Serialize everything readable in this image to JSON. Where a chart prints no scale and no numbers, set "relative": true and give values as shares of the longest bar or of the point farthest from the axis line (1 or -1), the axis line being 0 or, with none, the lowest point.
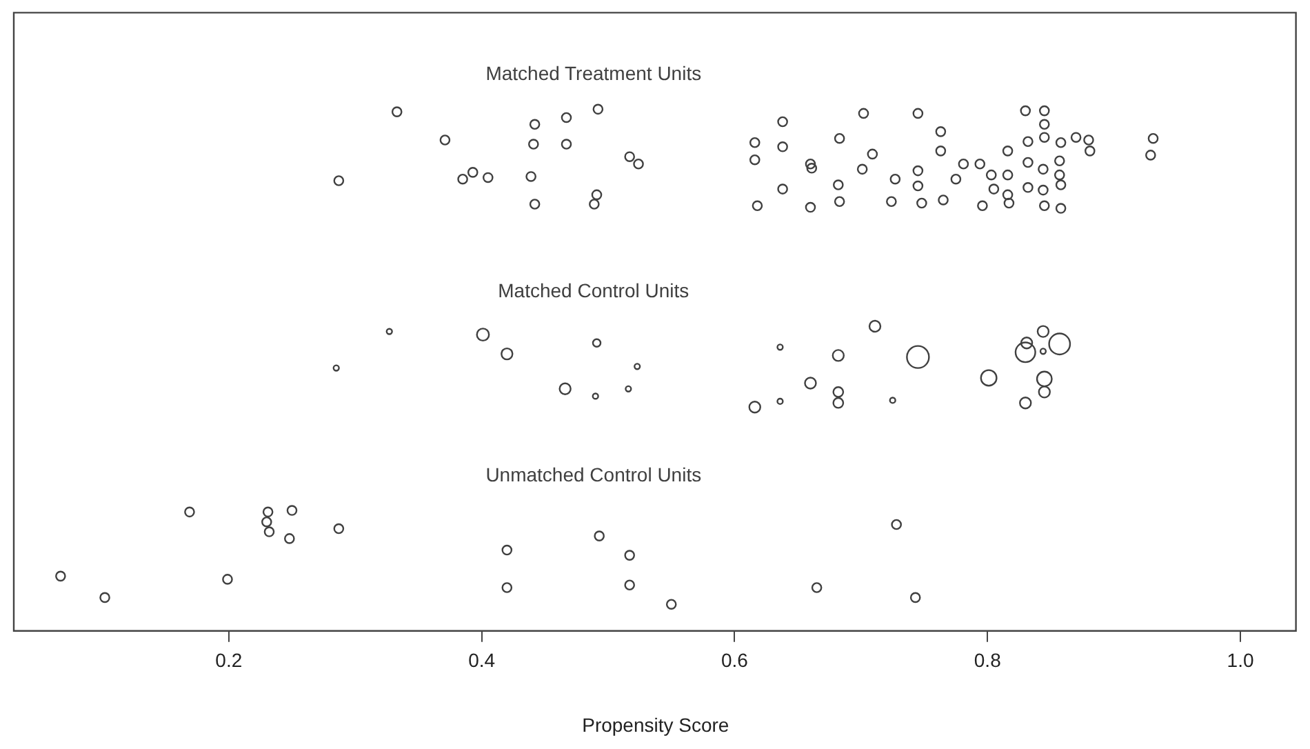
{
  "chart_data": {
    "type": "scatter",
    "xlabel": "Propensity Score",
    "relative": true,
    "grid": false,
    "legend": false,
    "marker": "circle",
    "tick_labels": "x",
    "xlim": [
      0.03,
      1.045
    ],
    "xticks": [
      0.2,
      0.4,
      0.6,
      {
        "value": 1,
        "label": "1.0"
      },
      0.8
    ],
    "series": [
      {
        "name": "Matched Treatment Units",
        "color": "#404040",
        "x": [
          0.333,
          0.371,
          0.287,
          0.385,
          0.393,
          0.405,
          0.442,
          0.441,
          0.439,
          0.442,
          0.467,
          0.467,
          0.492,
          0.491,
          0.489,
          0.517,
          0.524,
          0.616,
          0.616,
          0.638,
          0.638,
          0.638,
          0.618,
          0.66,
          0.66,
          0.661,
          0.682,
          0.683,
          0.683,
          0.702,
          0.701,
          0.709,
          0.724,
          0.727,
          0.745,
          0.745,
          0.745,
          0.748,
          0.763,
          0.763,
          0.765,
          0.775,
          0.781,
          0.794,
          0.796,
          0.803,
          0.805,
          0.816,
          0.816,
          0.816,
          0.817,
          0.83,
          0.832,
          0.832,
          0.832,
          0.845,
          0.845,
          0.845,
          0.844,
          0.844,
          0.845,
          0.858,
          0.857,
          0.857,
          0.858,
          0.858,
          0.87,
          0.88,
          0.881,
          0.931,
          0.929
        ],
        "values": [
          0.995,
          0.941,
          0.863,
          0.866,
          0.879,
          0.869,
          0.971,
          0.933,
          0.871,
          0.818,
          0.984,
          0.933,
          1.0,
          0.836,
          0.818,
          0.909,
          0.895,
          0.936,
          0.903,
          0.976,
          0.928,
          0.847,
          0.815,
          0.895,
          0.812,
          0.887,
          0.855,
          0.823,
          0.944,
          0.992,
          0.885,
          0.914,
          0.823,
          0.866,
          0.992,
          0.882,
          0.853,
          0.82,
          0.957,
          0.92,
          0.826,
          0.866,
          0.895,
          0.895,
          0.815,
          0.874,
          0.847,
          0.92,
          0.874,
          0.836,
          0.82,
          0.997,
          0.938,
          0.898,
          0.85,
          0.997,
          0.971,
          0.946,
          0.885,
          0.845,
          0.815,
          0.936,
          0.901,
          0.874,
          0.855,
          0.81,
          0.946,
          0.941,
          0.92,
          0.944,
          0.912
        ]
      },
      {
        "name": "Matched Control Units",
        "type": "bubble",
        "color": "#404040",
        "x": [
          0.327,
          0.401,
          0.42,
          0.491,
          0.523,
          0.285,
          0.466,
          0.49,
          0.516,
          0.616,
          0.636,
          0.636,
          0.66,
          0.682,
          0.682,
          0.711,
          0.682,
          0.725,
          0.745,
          0.801,
          0.83,
          0.831,
          0.844,
          0.844,
          0.857,
          0.845,
          0.845,
          0.83
        ],
        "values": [
          0.574,
          0.568,
          0.531,
          0.552,
          0.507,
          0.504,
          0.464,
          0.45,
          0.464,
          0.429,
          0.544,
          0.44,
          0.475,
          0.458,
          0.437,
          0.584,
          0.528,
          0.442,
          0.525,
          0.485,
          0.534,
          0.552,
          0.574,
          0.536,
          0.55,
          0.483,
          0.458,
          0.437
        ],
        "sizes": [
          0.06,
          0.3,
          0.25,
          0.12,
          0.06,
          0.06,
          0.25,
          0.06,
          0.06,
          0.25,
          0.06,
          0.06,
          0.25,
          0.2,
          0.2,
          0.25,
          0.25,
          0.06,
          1,
          0.5,
          0.8,
          0.25,
          0.25,
          0.06,
          0.9,
          0.45,
          0.25,
          0.25
        ]
      },
      {
        "name": "Unmatched Control Units",
        "color": "#404040",
        "x": [
          0.067,
          0.102,
          0.169,
          0.199,
          0.231,
          0.25,
          0.23,
          0.232,
          0.248,
          0.287,
          0.42,
          0.42,
          0.493,
          0.517,
          0.517,
          0.55,
          0.665,
          0.728,
          0.743
        ],
        "values": [
          0.105,
          0.064,
          0.228,
          0.099,
          0.228,
          0.231,
          0.209,
          0.19,
          0.177,
          0.196,
          0.155,
          0.083,
          0.182,
          0.145,
          0.088,
          0.051,
          0.083,
          0.204,
          0.064
        ]
      }
    ]
  }
}
